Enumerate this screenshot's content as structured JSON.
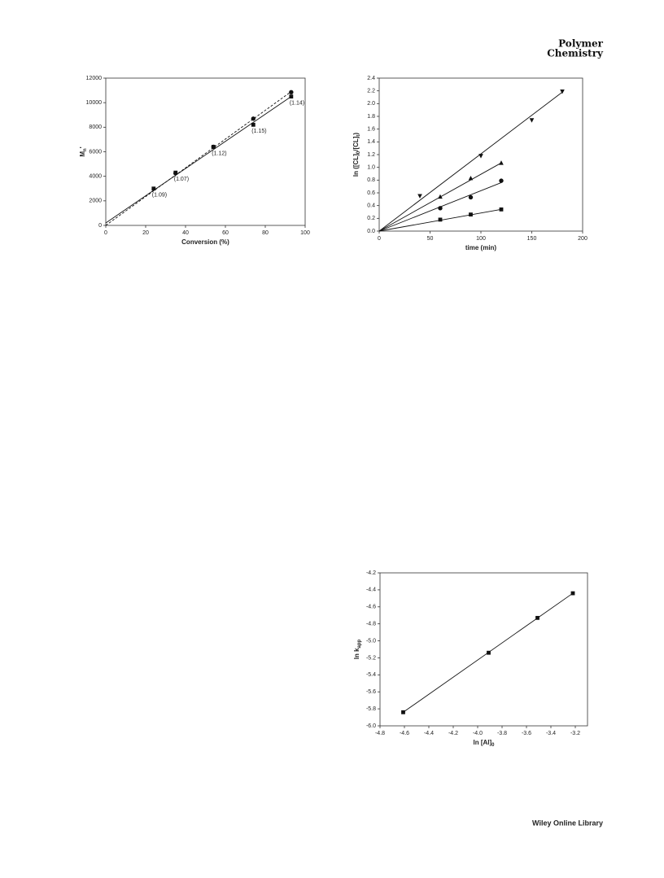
{
  "header": {
    "journal": [
      "Polymer",
      "Chemistry"
    ]
  },
  "footer": "Wiley Online Library",
  "chart_data": [
    {
      "type": "scatter",
      "xlabel": [
        "Conversion (%)"
      ],
      "ylabel": [
        "M",
        "n",
        "'"
      ],
      "xlim": [
        0,
        100
      ],
      "xticks": [
        0,
        20,
        40,
        60,
        80,
        100
      ],
      "ylim": [
        0,
        12000
      ],
      "yticks": [
        0,
        2000,
        4000,
        6000,
        8000,
        10000,
        12000
      ],
      "series": [
        {
          "marker": "square",
          "color": "#111",
          "x": [
            24,
            35,
            54,
            74,
            93
          ],
          "values": [
            3000,
            4300,
            6400,
            8200,
            10500
          ],
          "annotations": [
            "(1.09)",
            "(1.07)",
            "(1.12)",
            "(1.15)",
            "(1.14)"
          ],
          "fit": {
            "x": [
              0,
              93
            ],
            "values": [
              200,
              10500
            ]
          },
          "dash": false
        },
        {
          "marker": "circle",
          "color": "#111",
          "x": [
            35,
            54,
            74,
            93
          ],
          "values": [
            4250,
            6400,
            8700,
            10850
          ],
          "fit": {
            "x": [
              0,
              93
            ],
            "values": [
              0,
              10900
            ]
          },
          "dash": true
        }
      ]
    },
    {
      "type": "scatter",
      "xlabel": [
        "time (min)"
      ],
      "ylabel": [
        "ln ([CL]",
        "0",
        "/[CL]",
        "t",
        ")"
      ],
      "xlim": [
        0,
        200
      ],
      "xticks": [
        0,
        50,
        100,
        150,
        200
      ],
      "ylim": [
        0,
        2.4
      ],
      "yticks": [
        {
          "value": 0,
          "label": "0.0"
        },
        0.2,
        0.4,
        0.6,
        0.8,
        {
          "value": 1,
          "label": "1.0"
        },
        1.2,
        1.4,
        1.6,
        1.8,
        {
          "value": 2,
          "label": "2.0"
        },
        2.2,
        2.4
      ],
      "series": [
        {
          "marker": "square",
          "color": "#111",
          "x": [
            60,
            90,
            120
          ],
          "values": [
            0.18,
            0.26,
            0.34
          ],
          "fit": {
            "x": [
              0,
              120
            ],
            "values": [
              0,
              0.34
            ]
          },
          "dash": false
        },
        {
          "marker": "circle",
          "color": "#111",
          "x": [
            60,
            90,
            120
          ],
          "values": [
            0.36,
            0.53,
            0.79
          ],
          "fit": {
            "x": [
              0,
              120
            ],
            "values": [
              0,
              0.76
            ]
          },
          "dash": false
        },
        {
          "marker": "triangle-up",
          "color": "#111",
          "x": [
            60,
            90,
            120
          ],
          "values": [
            0.54,
            0.83,
            1.07
          ],
          "fit": {
            "x": [
              0,
              120
            ],
            "values": [
              0,
              1.07
            ]
          },
          "dash": false
        },
        {
          "marker": "triangle-down",
          "color": "#111",
          "x": [
            40,
            100,
            150,
            180
          ],
          "values": [
            0.55,
            1.18,
            1.74,
            2.19
          ],
          "fit": {
            "x": [
              0,
              180
            ],
            "values": [
              0,
              2.18
            ]
          },
          "dash": false
        }
      ]
    },
    {
      "type": "scatter",
      "xlabel": [
        "ln [Al]",
        "0"
      ],
      "ylabel": [
        "ln k",
        "app"
      ],
      "xlim": [
        -4.8,
        -3.1
      ],
      "xticks": [
        -4.8,
        -4.6,
        -4.4,
        -4.2,
        {
          "value": -4,
          "label": "-4.0"
        },
        -3.8,
        -3.6,
        -3.4,
        -3.2
      ],
      "ylim": [
        -6,
        -4.2
      ],
      "yticks": [
        {
          "value": -6,
          "label": "-6.0"
        },
        -5.8,
        -5.6,
        -5.4,
        -5.2,
        {
          "value": -5,
          "label": "-5.0"
        },
        -4.8,
        -4.6,
        -4.4,
        -4.2
      ],
      "series": [
        {
          "marker": "square",
          "color": "#111",
          "x": [
            -4.61,
            -3.91,
            -3.51,
            -3.22
          ],
          "values": [
            -5.84,
            -5.14,
            -4.73,
            -4.44
          ],
          "fit": {
            "x": [
              -4.61,
              -3.22
            ],
            "values": [
              -5.84,
              -4.44
            ]
          },
          "dash": false
        }
      ]
    }
  ]
}
